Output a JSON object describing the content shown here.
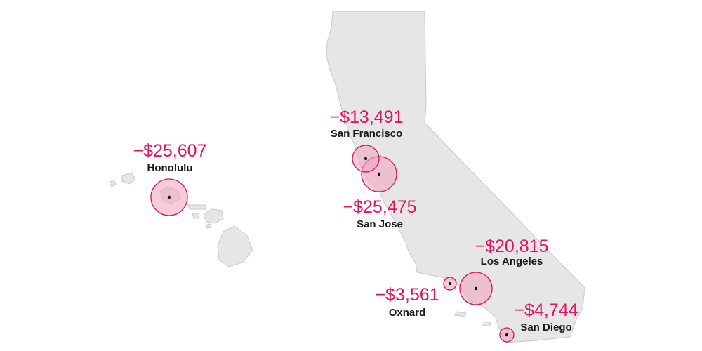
{
  "colors": {
    "land": "#e6e6e6",
    "land_stroke": "#c9c9c9",
    "bubble_fill": "#f3a0bd",
    "bubble_stroke": "#d4145a",
    "value_text": "#e4135f",
    "city_text": "#1a1a1a"
  },
  "regions": [
    "California",
    "Hawaii"
  ],
  "cities": [
    {
      "name": "Honolulu",
      "value": "−$25,607",
      "amount": -25607
    },
    {
      "name": "San Francisco",
      "value": "−$13,491",
      "amount": -13491
    },
    {
      "name": "San Jose",
      "value": "−$25,475",
      "amount": -25475
    },
    {
      "name": "Los Angeles",
      "value": "−$20,815",
      "amount": -20815
    },
    {
      "name": "Oxnard",
      "value": "−$3,561",
      "amount": -3561
    },
    {
      "name": "San Diego",
      "value": "−$4,744",
      "amount": -4744
    }
  ]
}
